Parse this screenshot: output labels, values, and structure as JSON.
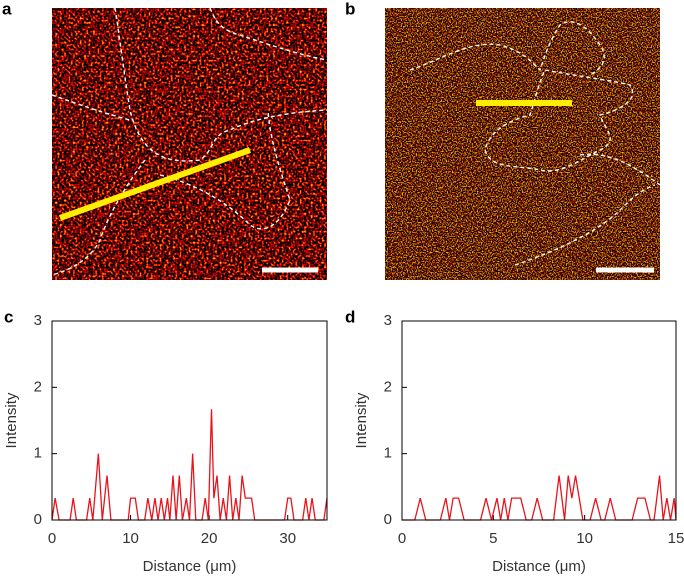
{
  "images": [
    {
      "label": "a"
    },
    {
      "label": "b"
    }
  ],
  "chart_data": [
    {
      "type": "line",
      "label": "c",
      "xlabel": "Distance (μm)",
      "ylabel": "Intensity",
      "x": [
        0,
        0.4,
        0.9,
        2.3,
        2.7,
        3.1,
        4.4,
        4.8,
        5.2,
        5.9,
        6.4,
        7.0,
        7.5,
        9.7,
        10.0,
        10.6,
        11.0,
        11.8,
        12.2,
        12.7,
        13.1,
        13.5,
        13.9,
        14.3,
        14.7,
        15.0,
        15.4,
        15.8,
        16.2,
        16.6,
        17.1,
        17.5,
        17.9,
        18.3,
        19.1,
        19.5,
        19.9,
        20.3,
        20.6,
        21.0,
        21.4,
        21.8,
        22.2,
        22.6,
        23.0,
        23.4,
        23.8,
        24.2,
        24.6,
        25.4,
        25.8,
        29.6,
        30.0,
        30.4,
        30.8,
        31.9,
        32.3,
        32.7,
        33.1,
        33.5,
        34.6,
        35
      ],
      "series": [
        {
          "color": "#e8141c",
          "values": [
            0,
            0.33,
            0,
            0,
            0.33,
            0,
            0,
            0.33,
            0,
            1,
            0,
            0.67,
            0,
            0,
            0.33,
            0.33,
            0,
            0,
            0.33,
            0,
            0.33,
            0,
            0.33,
            0,
            0.33,
            0,
            0.67,
            0,
            0.67,
            0,
            0.33,
            0,
            1,
            0,
            0,
            0.33,
            0,
            1.67,
            0.33,
            0.67,
            0,
            0.33,
            0,
            0.67,
            0,
            0.33,
            0,
            0.67,
            0.33,
            0.33,
            0,
            0,
            0.33,
            0.33,
            0,
            0,
            0.33,
            0,
            0.33,
            0,
            0,
            0.33
          ]
        }
      ],
      "xlim": [
        0,
        35
      ],
      "xticks": [
        0,
        10,
        20,
        30
      ],
      "ylim": [
        0,
        3
      ],
      "yticks": [
        0,
        1,
        2,
        3
      ]
    },
    {
      "type": "line",
      "label": "d",
      "xlabel": "Distance (μm)",
      "ylabel": "Intensity",
      "x": [
        0,
        0.7,
        1.0,
        1.3,
        2.1,
        2.4,
        2.6,
        2.8,
        3.1,
        3.4,
        4.3,
        4.6,
        4.9,
        5.2,
        5.4,
        5.6,
        5.8,
        6.0,
        6.5,
        6.8,
        7.1,
        7.4,
        7.7,
        8.3,
        8.6,
        8.9,
        9.1,
        9.3,
        9.5,
        9.9,
        10.3,
        10.6,
        10.9,
        11.1,
        11.4,
        11.7,
        12.6,
        12.9,
        13.3,
        13.6,
        13.8,
        14.1,
        14.3,
        14.5,
        14.7,
        14.9,
        15
      ],
      "series": [
        {
          "color": "#e8141c",
          "values": [
            0,
            0,
            0.33,
            0,
            0,
            0.33,
            0,
            0.33,
            0.33,
            0,
            0,
            0.33,
            0,
            0.33,
            0,
            0.33,
            0,
            0.33,
            0.33,
            0,
            0,
            0.33,
            0,
            0,
            0.67,
            0,
            0.67,
            0.33,
            0.67,
            0,
            0,
            0.33,
            0,
            0,
            0.33,
            0,
            0,
            0.33,
            0.33,
            0,
            0,
            0.67,
            0,
            0.33,
            0,
            0.33,
            0
          ]
        }
      ],
      "xlim": [
        0,
        15
      ],
      "xticks": [
        0,
        5,
        10,
        15
      ],
      "ylim": [
        0,
        3
      ],
      "yticks": [
        0,
        1,
        2,
        3
      ]
    }
  ]
}
